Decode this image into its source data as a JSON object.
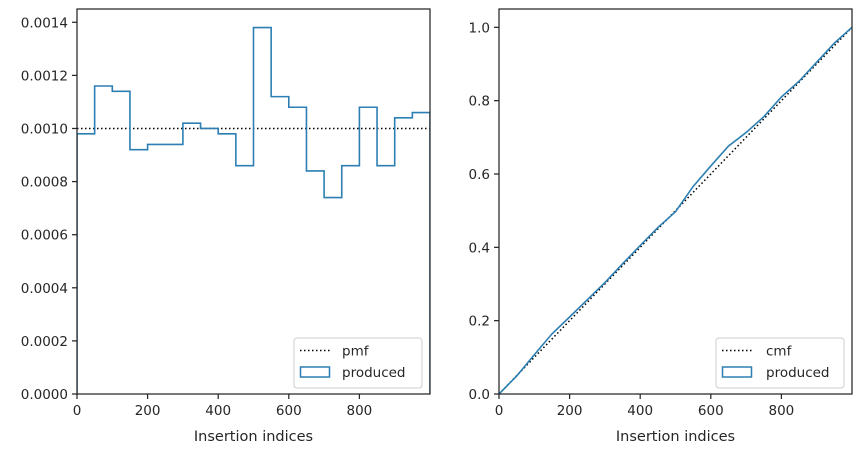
{
  "colors": {
    "produced": "#2d7fb3",
    "reference": "#000000",
    "axis": "#262626",
    "legend_border": "#cccccc"
  },
  "chart_data": [
    {
      "type": "histogram-step",
      "title": "",
      "xlabel": "Insertion indices",
      "ylabel": "",
      "xlim": [
        0,
        1000
      ],
      "ylim": [
        0,
        0.00145
      ],
      "x_ticks": [
        0,
        200,
        400,
        600,
        800
      ],
      "x_tick_labels": [
        "0",
        "200",
        "400",
        "600",
        "800"
      ],
      "y_ticks": [
        0,
        0.0002,
        0.0004,
        0.0006,
        0.0008,
        0.001,
        0.0012,
        0.0014
      ],
      "y_tick_labels": [
        "0.0000",
        "0.0002",
        "0.0004",
        "0.0006",
        "0.0008",
        "0.0010",
        "0.0012",
        "0.0014"
      ],
      "grid": false,
      "legend": {
        "placement": "lower-right",
        "entries": [
          "pmf",
          "produced"
        ]
      },
      "series": [
        {
          "name": "pmf",
          "style": "dotted",
          "x": [
            0,
            1000
          ],
          "y": [
            0.001,
            0.001
          ]
        },
        {
          "name": "produced",
          "style": "step",
          "bin_edges": [
            0,
            50,
            100,
            150,
            200,
            250,
            300,
            350,
            400,
            450,
            500,
            550,
            600,
            650,
            700,
            750,
            800,
            850,
            900,
            950,
            1000
          ],
          "values": [
            0.00098,
            0.00116,
            0.00114,
            0.00092,
            0.00094,
            0.00094,
            0.00102,
            0.001,
            0.00098,
            0.00086,
            0.00138,
            0.00112,
            0.00108,
            0.00084,
            0.00074,
            0.00086,
            0.00108,
            0.00086,
            0.00104,
            0.00106
          ]
        }
      ]
    },
    {
      "type": "line",
      "title": "",
      "xlabel": "Insertion indices",
      "ylabel": "",
      "xlim": [
        0,
        1000
      ],
      "ylim": [
        0,
        1.05
      ],
      "x_ticks": [
        0,
        200,
        400,
        600,
        800
      ],
      "x_tick_labels": [
        "0",
        "200",
        "400",
        "600",
        "800"
      ],
      "y_ticks": [
        0,
        0.2,
        0.4,
        0.6,
        0.8,
        1.0
      ],
      "y_tick_labels": [
        "0.0",
        "0.2",
        "0.4",
        "0.6",
        "0.8",
        "1.0"
      ],
      "grid": false,
      "legend": {
        "placement": "lower-right",
        "entries": [
          "cmf",
          "produced"
        ]
      },
      "series": [
        {
          "name": "cmf",
          "style": "dotted",
          "x": [
            0,
            1000
          ],
          "y": [
            0,
            1
          ]
        },
        {
          "name": "produced",
          "style": "solid",
          "x": [
            0,
            50,
            100,
            150,
            200,
            250,
            300,
            350,
            400,
            450,
            500,
            550,
            600,
            650,
            700,
            750,
            800,
            850,
            900,
            950,
            1000
          ],
          "y": [
            0,
            0.049,
            0.107,
            0.164,
            0.21,
            0.257,
            0.304,
            0.355,
            0.405,
            0.454,
            0.497,
            0.566,
            0.622,
            0.676,
            0.713,
            0.756,
            0.81,
            0.853,
            0.905,
            0.957,
            1.0
          ]
        }
      ]
    }
  ]
}
